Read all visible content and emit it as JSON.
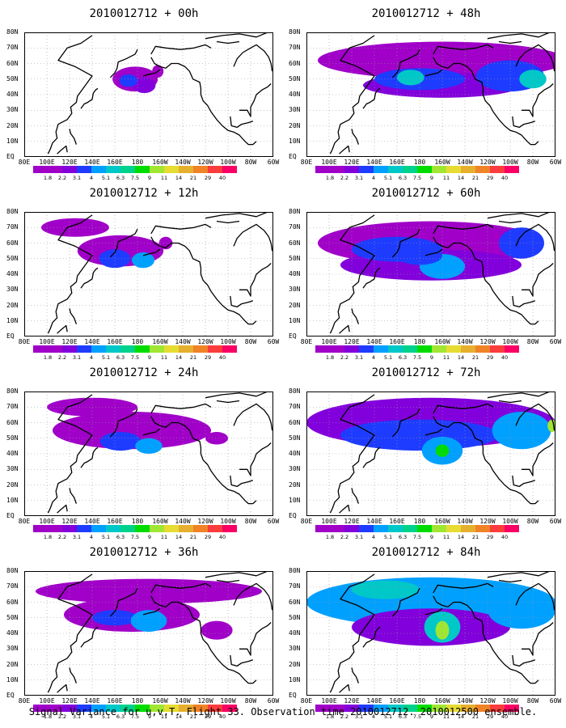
{
  "panels": [
    {
      "title": "2010012712 + 00h",
      "lead": "00h"
    },
    {
      "title": "2010012712 + 48h",
      "lead": "48h"
    },
    {
      "title": "2010012712 + 12h",
      "lead": "12h"
    },
    {
      "title": "2010012712 + 60h",
      "lead": "60h"
    },
    {
      "title": "2010012712 + 24h",
      "lead": "24h"
    },
    {
      "title": "2010012712 + 72h",
      "lead": "72h"
    },
    {
      "title": "2010012712 + 36h",
      "lead": "36h"
    },
    {
      "title": "2010012712 + 84h",
      "lead": "84h"
    }
  ],
  "lat_labels": [
    "80N",
    "70N",
    "60N",
    "50N",
    "40N",
    "30N",
    "20N",
    "10N",
    "EQ"
  ],
  "lon_labels": [
    "80E",
    "100E",
    "120E",
    "140E",
    "160E",
    "180",
    "160W",
    "140W",
    "120W",
    "100W",
    "80W",
    "60W"
  ],
  "colorbar": {
    "labels": [
      "1.8",
      "2.2",
      "3.1",
      "4",
      "5.1",
      "6.3",
      "7.5",
      "9",
      "11",
      "14",
      "21",
      "29",
      "40"
    ],
    "colors": [
      "#a000c8",
      "#8200dc",
      "#1e3cff",
      "#00a0ff",
      "#00c8c8",
      "#00d28c",
      "#00dc00",
      "#a0e632",
      "#e6dc32",
      "#e6af2d",
      "#f08228",
      "#fa3c3c",
      "#f00082"
    ]
  },
  "caption": "Signal Variance for u,v,T. Flight 33. Observation time 2010012712. 2010012500 ensemble."
}
